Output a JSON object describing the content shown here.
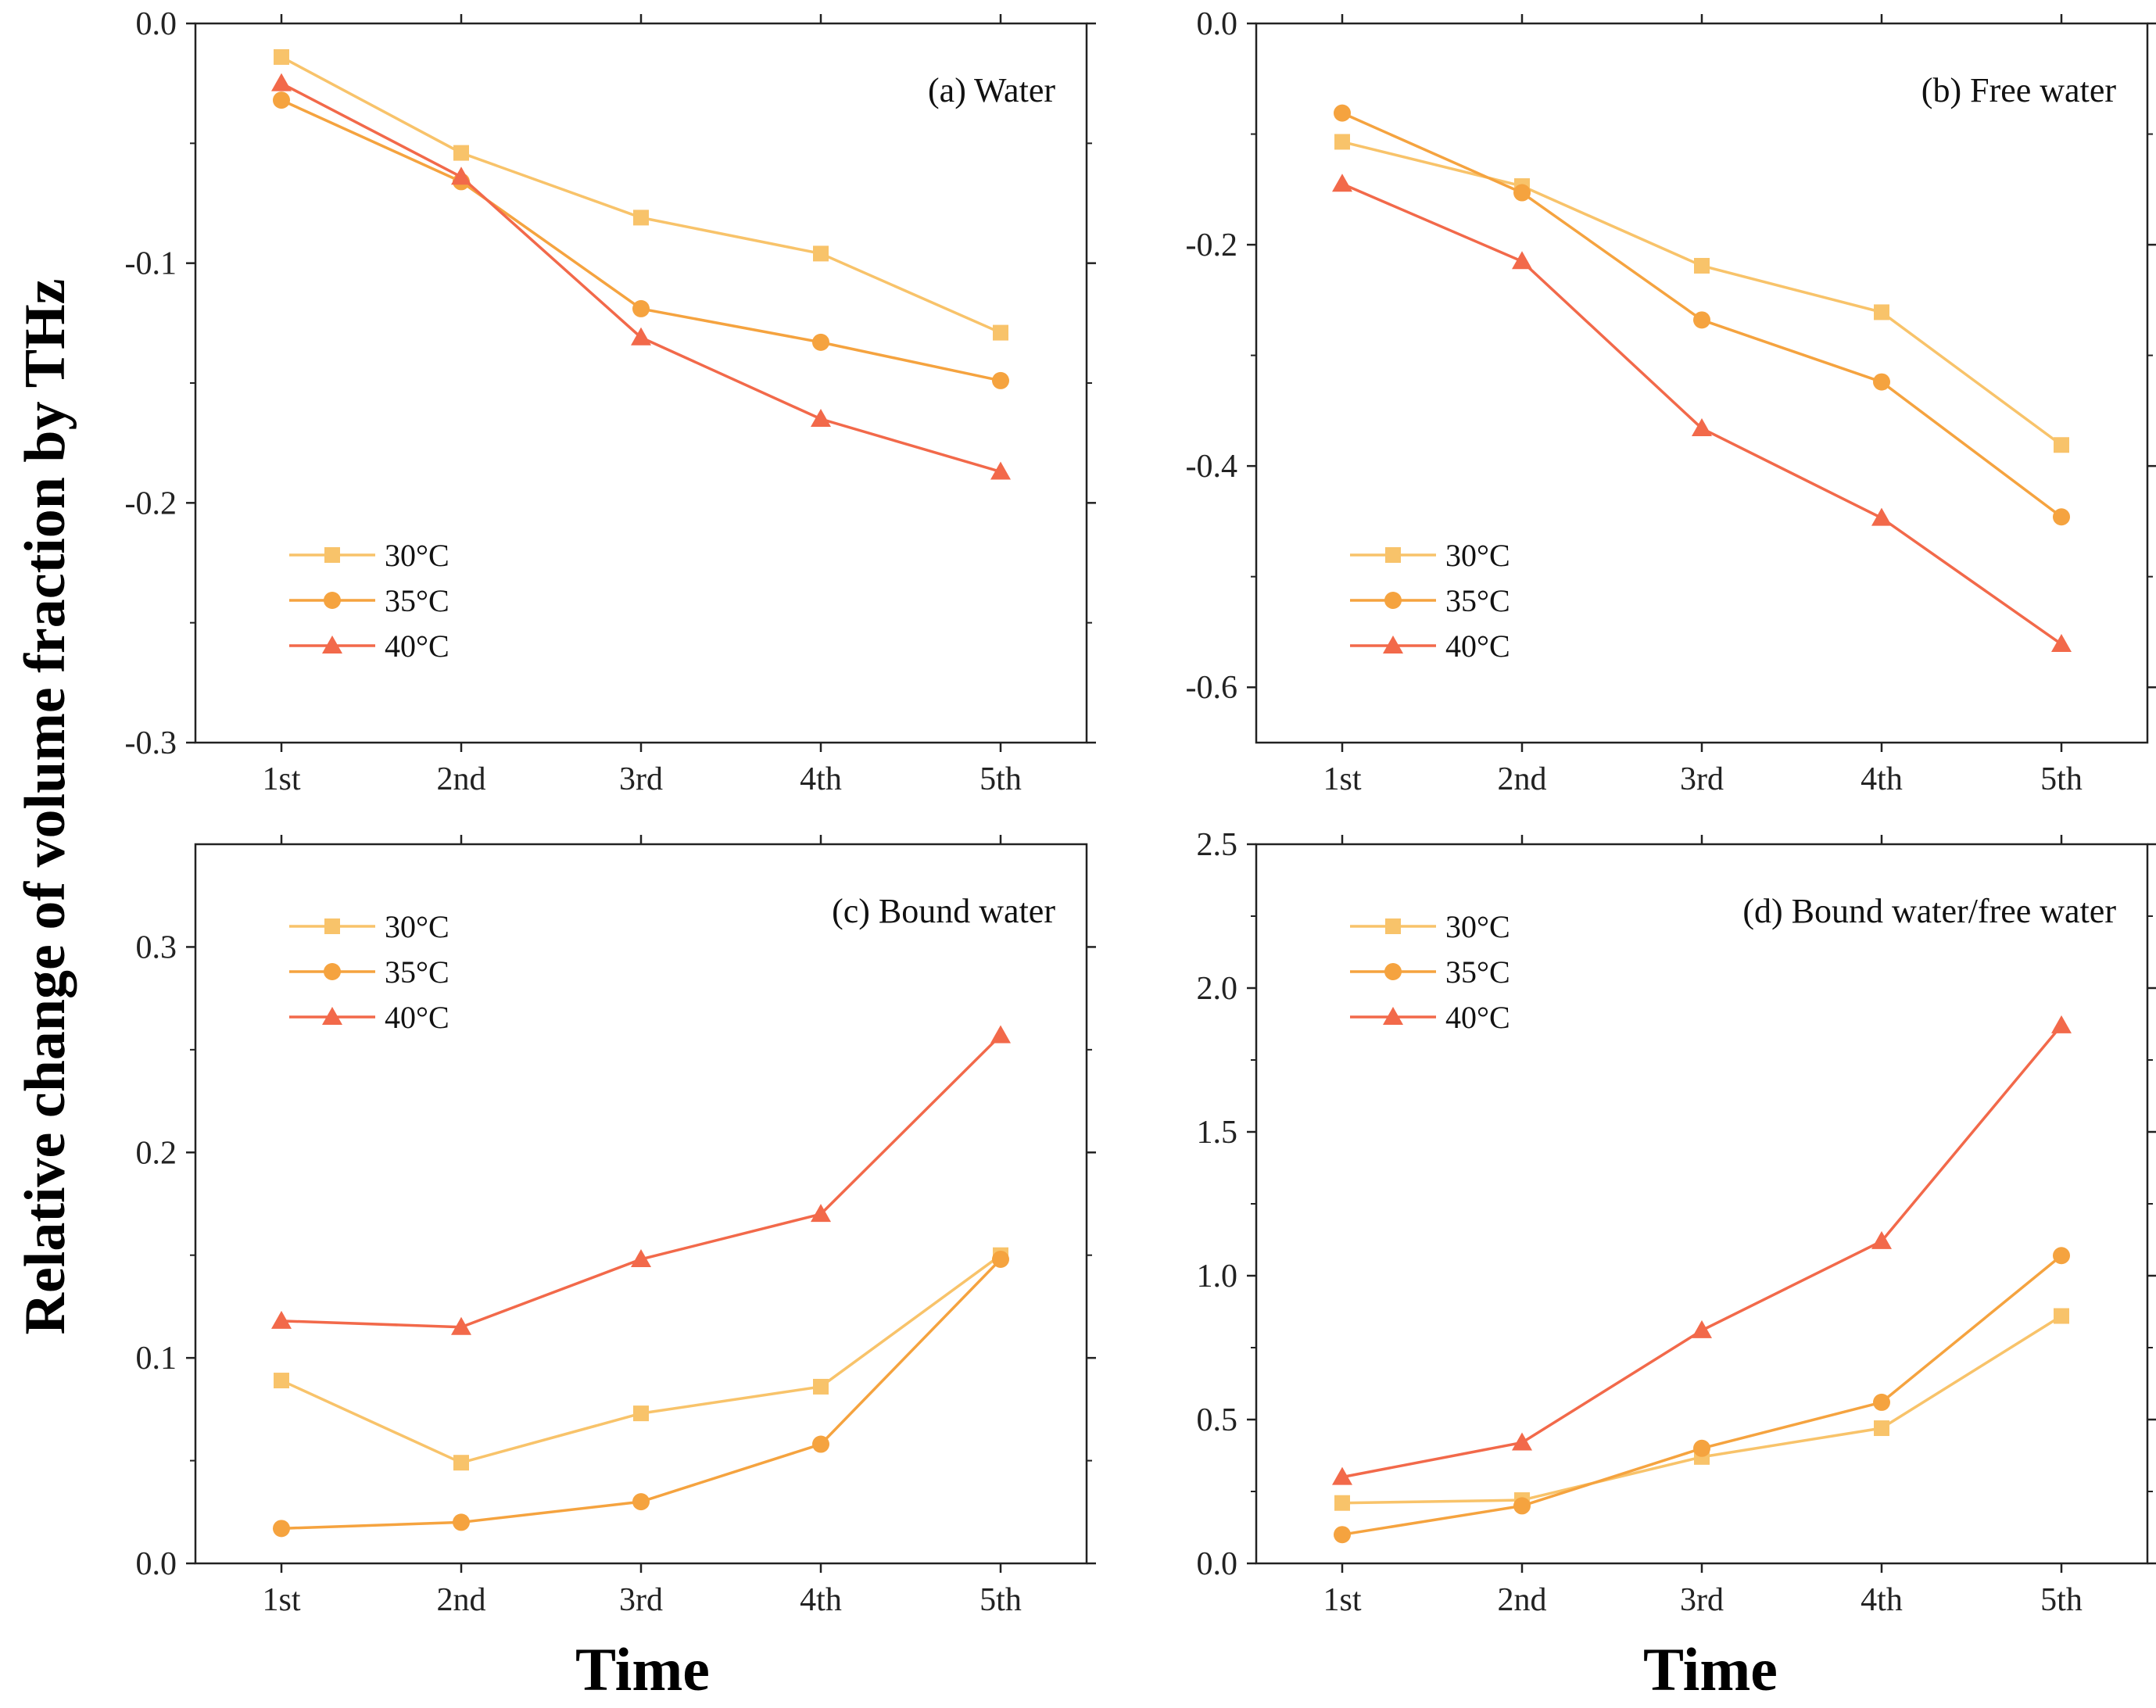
{
  "figure": {
    "ylabel": "Relative change of volume fraction by THz",
    "xlabel": "Time"
  },
  "colors": {
    "30°C": "#F8C36A",
    "35°C": "#F5A33F",
    "40°C": "#F2694A"
  },
  "chart_data": [
    {
      "type": "line",
      "title": "(a) Water",
      "categories": [
        "1st",
        "2nd",
        "3rd",
        "4th",
        "5th"
      ],
      "ylim": [
        -0.3,
        0.0
      ],
      "yticks": [
        0.0,
        -0.1,
        -0.2,
        -0.3
      ],
      "ytick_labels": [
        "0.0",
        "-0.1",
        "-0.2",
        "-0.3"
      ],
      "legend_position": "lower-left",
      "series": [
        {
          "name": "30°C",
          "marker": "square",
          "values": [
            -0.014,
            -0.054,
            -0.081,
            -0.096,
            -0.129
          ]
        },
        {
          "name": "35°C",
          "marker": "circle",
          "values": [
            -0.032,
            -0.066,
            -0.119,
            -0.133,
            -0.149
          ]
        },
        {
          "name": "40°C",
          "marker": "triangle",
          "values": [
            -0.025,
            -0.064,
            -0.131,
            -0.165,
            -0.187
          ]
        }
      ]
    },
    {
      "type": "line",
      "title": "(b) Free water",
      "categories": [
        "1st",
        "2nd",
        "3rd",
        "4th",
        "5th"
      ],
      "ylim": [
        -0.65,
        0.0
      ],
      "yticks": [
        0.0,
        -0.2,
        -0.4,
        -0.6
      ],
      "ytick_labels": [
        "0.0",
        "-0.2",
        "-0.4",
        "-0.6"
      ],
      "legend_position": "lower-left",
      "series": [
        {
          "name": "30°C",
          "marker": "square",
          "values": [
            -0.107,
            -0.147,
            -0.219,
            -0.261,
            -0.381
          ]
        },
        {
          "name": "35°C",
          "marker": "circle",
          "values": [
            -0.081,
            -0.153,
            -0.268,
            -0.324,
            -0.446
          ]
        },
        {
          "name": "40°C",
          "marker": "triangle",
          "values": [
            -0.145,
            -0.215,
            -0.366,
            -0.447,
            -0.561
          ]
        }
      ]
    },
    {
      "type": "line",
      "title": "(c) Bound water",
      "categories": [
        "1st",
        "2nd",
        "3rd",
        "4th",
        "5th"
      ],
      "ylim": [
        0.0,
        0.35
      ],
      "yticks": [
        0.0,
        0.1,
        0.2,
        0.3
      ],
      "ytick_labels": [
        "0.0",
        "0.1",
        "0.2",
        "0.3"
      ],
      "legend_position": "top-left",
      "series": [
        {
          "name": "30°C",
          "marker": "square",
          "values": [
            0.089,
            0.049,
            0.073,
            0.086,
            0.15
          ]
        },
        {
          "name": "35°C",
          "marker": "circle",
          "values": [
            0.017,
            0.02,
            0.03,
            0.058,
            0.148
          ]
        },
        {
          "name": "40°C",
          "marker": "triangle",
          "values": [
            0.118,
            0.115,
            0.148,
            0.17,
            0.257
          ]
        }
      ]
    },
    {
      "type": "line",
      "title": "(d) Bound water/free water",
      "categories": [
        "1st",
        "2nd",
        "3rd",
        "4th",
        "5th"
      ],
      "ylim": [
        0.0,
        2.5
      ],
      "yticks": [
        0.0,
        0.5,
        1.0,
        1.5,
        2.0,
        2.5
      ],
      "ytick_labels": [
        "0.0",
        "0.5",
        "1.0",
        "1.5",
        "2.0",
        "2.5"
      ],
      "legend_position": "top-left",
      "series": [
        {
          "name": "30°C",
          "marker": "square",
          "values": [
            0.21,
            0.22,
            0.37,
            0.47,
            0.86
          ]
        },
        {
          "name": "35°C",
          "marker": "circle",
          "values": [
            0.1,
            0.2,
            0.4,
            0.56,
            1.07
          ]
        },
        {
          "name": "40°C",
          "marker": "triangle",
          "values": [
            0.3,
            0.42,
            0.81,
            1.12,
            1.87
          ]
        }
      ]
    }
  ]
}
